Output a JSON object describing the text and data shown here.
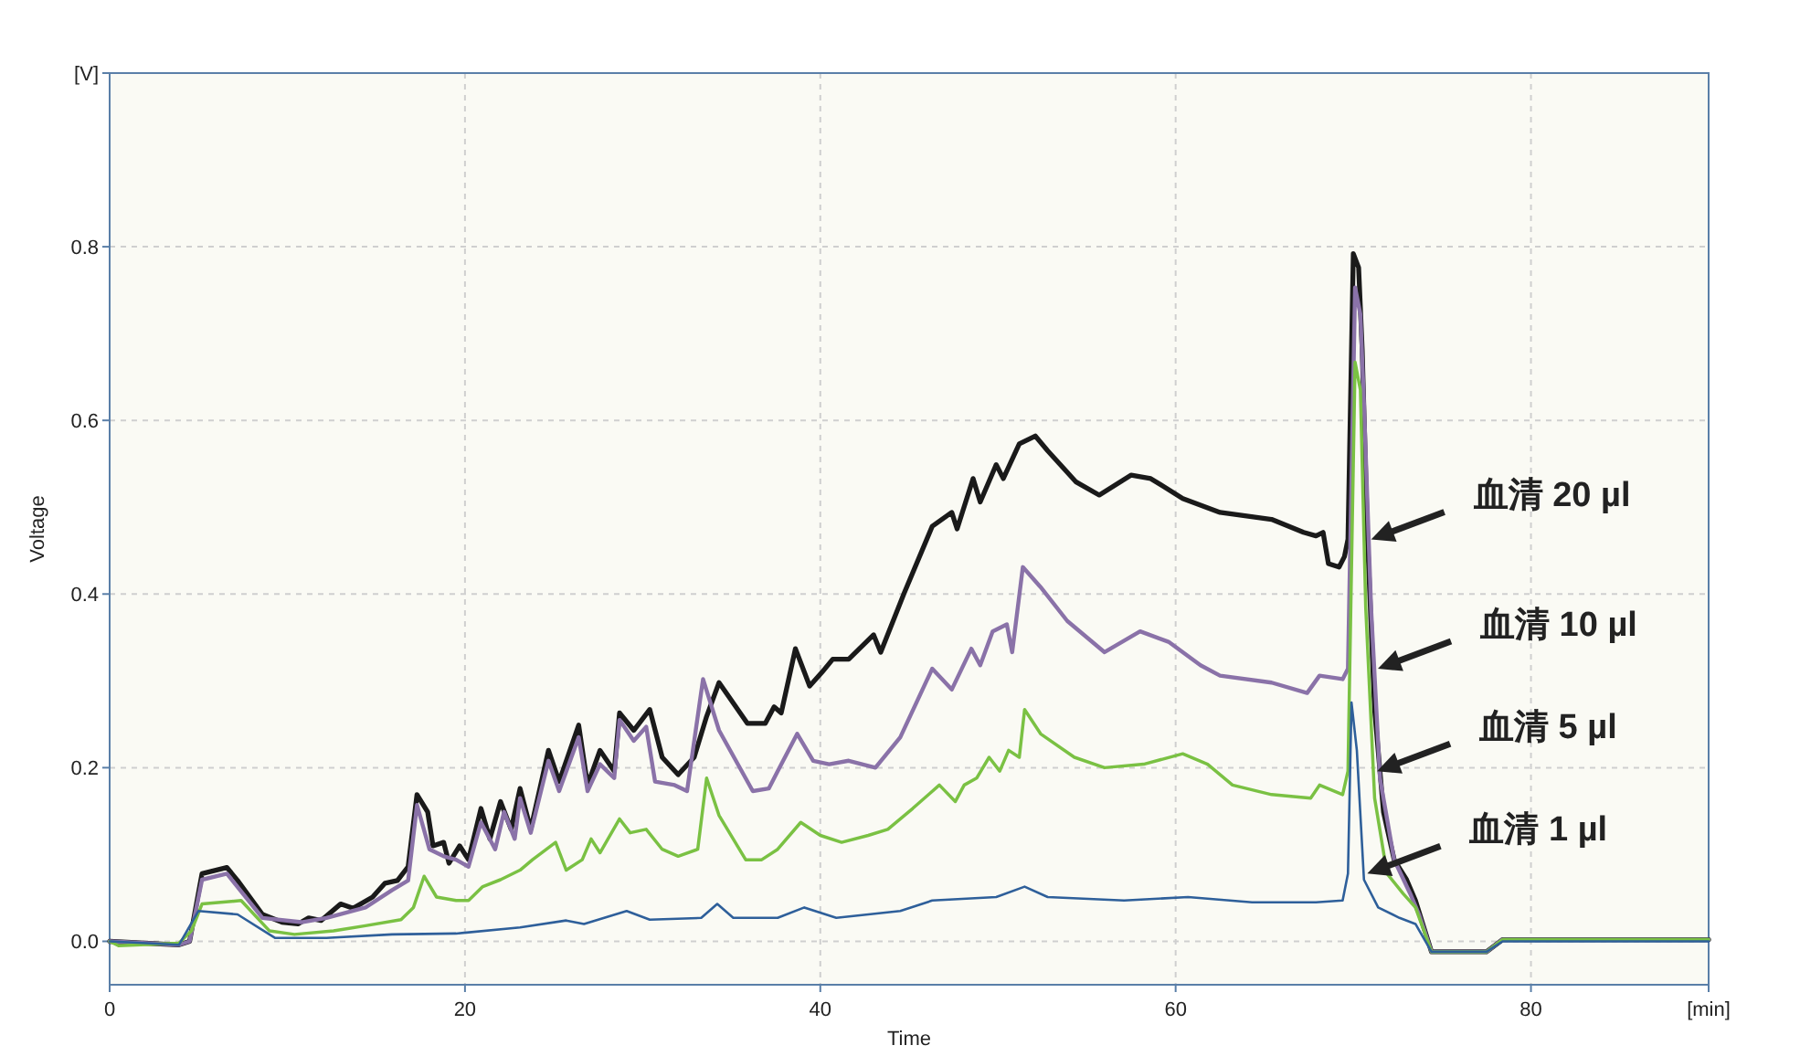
{
  "chart_data": {
    "type": "line",
    "xlabel": "Time",
    "ylabel": "Voltage",
    "xlim": [
      0,
      90
    ],
    "ylim": [
      -0.05,
      1.0
    ],
    "xticks": [
      0,
      20,
      40,
      60,
      80,
      {
        "value": 90,
        "label": "[min]"
      }
    ],
    "yticks": [
      {
        "value": 0,
        "label": "0.0"
      },
      0.2,
      0.4,
      0.6,
      0.8,
      {
        "value": 1.0,
        "label": "[V]"
      }
    ],
    "grid": true,
    "series": [
      {
        "color": "#1a1a1a",
        "x": [
          0,
          3.9,
          4.5,
          5.2,
          6.6,
          7.2,
          8.6,
          9.7,
          10.6,
          11.2,
          11.9,
          13.0,
          13.7,
          14.8,
          15.5,
          16.2,
          16.8,
          17.3,
          17.9,
          18.2,
          18.8,
          19.1,
          19.7,
          20.2,
          20.9,
          21.4,
          22.0,
          22.6,
          23.1,
          23.7,
          24.7,
          25.3,
          26.4,
          26.9,
          27.6,
          28.4,
          28.7,
          29.5,
          30.4,
          31.1,
          32.0,
          32.9,
          33.6,
          34.3,
          35.9,
          36.9,
          37.4,
          37.8,
          38.6,
          39.4,
          40.1,
          40.7,
          41.6,
          43.0,
          43.4,
          44.7,
          46.3,
          47.4,
          47.7,
          48.6,
          49.0,
          49.9,
          50.3,
          51.2,
          52.1,
          52.8,
          54.4,
          55.7,
          57.5,
          58.6,
          60.4,
          62.5,
          65.4,
          67.2,
          67.9,
          68.3,
          68.6,
          69.2,
          69.5,
          69.7,
          70.0,
          70.3,
          70.5,
          70.8,
          71.2,
          71.7,
          72.3,
          73.0,
          73.5,
          74.4,
          77.5,
          78.4,
          90
        ],
        "values": [
          0,
          -0.004,
          0,
          0.078,
          0.085,
          0.07,
          0.031,
          0.022,
          0.02,
          0.027,
          0.024,
          0.043,
          0.038,
          0.051,
          0.067,
          0.07,
          0.086,
          0.169,
          0.149,
          0.11,
          0.114,
          0.09,
          0.11,
          0.094,
          0.153,
          0.118,
          0.161,
          0.129,
          0.176,
          0.129,
          0.22,
          0.184,
          0.249,
          0.18,
          0.22,
          0.196,
          0.263,
          0.243,
          0.267,
          0.212,
          0.192,
          0.212,
          0.259,
          0.298,
          0.251,
          0.251,
          0.27,
          0.263,
          0.337,
          0.294,
          0.31,
          0.325,
          0.325,
          0.353,
          0.333,
          0.4,
          0.478,
          0.494,
          0.475,
          0.533,
          0.506,
          0.549,
          0.533,
          0.573,
          0.582,
          0.565,
          0.529,
          0.514,
          0.537,
          0.533,
          0.51,
          0.494,
          0.486,
          0.471,
          0.467,
          0.471,
          0.435,
          0.431,
          0.443,
          0.463,
          0.792,
          0.776,
          0.682,
          0.463,
          0.267,
          0.149,
          0.094,
          0.071,
          0.047,
          -0.012,
          -0.012,
          0.002,
          0.002
        ]
      },
      {
        "color": "#8a72a8",
        "x": [
          0,
          3.9,
          4.5,
          5.2,
          6.6,
          8.6,
          10.8,
          12.2,
          14.4,
          15.9,
          16.8,
          17.3,
          18.0,
          18.8,
          19.5,
          20.2,
          20.9,
          21.7,
          22.2,
          22.8,
          23.1,
          23.7,
          24.7,
          25.3,
          26.4,
          26.9,
          27.6,
          28.4,
          28.7,
          29.5,
          30.2,
          30.7,
          31.8,
          32.5,
          33.4,
          34.3,
          36.2,
          37.1,
          37.6,
          38.7,
          39.6,
          40.5,
          41.6,
          43.1,
          44.5,
          46.3,
          47.4,
          48.5,
          49.0,
          49.7,
          50.5,
          50.8,
          51.4,
          52.4,
          53.9,
          56.0,
          58.0,
          59.6,
          61.4,
          62.5,
          65.4,
          67.4,
          68.1,
          69.4,
          69.7,
          70.1,
          70.4,
          70.6,
          71.0,
          71.5,
          72.3,
          73.2,
          73.7,
          74.4,
          77.5,
          78.4,
          90
        ],
        "values": [
          0,
          -0.004,
          0,
          0.071,
          0.078,
          0.027,
          0.022,
          0.027,
          0.039,
          0.059,
          0.07,
          0.157,
          0.106,
          0.098,
          0.094,
          0.086,
          0.137,
          0.106,
          0.149,
          0.118,
          0.165,
          0.125,
          0.208,
          0.173,
          0.235,
          0.173,
          0.204,
          0.188,
          0.255,
          0.231,
          0.247,
          0.184,
          0.18,
          0.173,
          0.302,
          0.243,
          0.173,
          0.176,
          0.196,
          0.239,
          0.208,
          0.204,
          0.208,
          0.2,
          0.235,
          0.314,
          0.29,
          0.337,
          0.318,
          0.357,
          0.365,
          0.333,
          0.431,
          0.408,
          0.369,
          0.333,
          0.357,
          0.345,
          0.318,
          0.306,
          0.298,
          0.286,
          0.306,
          0.302,
          0.314,
          0.753,
          0.722,
          0.62,
          0.384,
          0.188,
          0.094,
          0.055,
          0.031,
          -0.012,
          -0.012,
          0.002,
          0.002
        ]
      },
      {
        "color": "#7ac143",
        "x": [
          0,
          0.5,
          3.9,
          4.6,
          5.2,
          7.4,
          9.0,
          10.4,
          12.6,
          14.4,
          16.4,
          17.1,
          17.7,
          18.4,
          19.5,
          20.2,
          21.0,
          22.0,
          23.1,
          23.8,
          25.1,
          25.7,
          26.6,
          27.1,
          27.6,
          28.7,
          29.3,
          30.2,
          31.1,
          32.0,
          33.1,
          33.6,
          34.3,
          35.8,
          36.7,
          37.6,
          38.9,
          40.0,
          41.2,
          42.7,
          43.8,
          45.2,
          46.7,
          47.6,
          48.1,
          48.8,
          49.5,
          50.1,
          50.6,
          51.2,
          51.5,
          52.4,
          54.3,
          56.0,
          58.2,
          60.4,
          61.8,
          63.2,
          65.4,
          67.6,
          68.1,
          69.4,
          69.7,
          70.1,
          70.4,
          70.7,
          71.2,
          71.9,
          72.8,
          73.5,
          74.4,
          77.5,
          78.4,
          90
        ],
        "values": [
          0,
          -0.005,
          -0.002,
          0.012,
          0.043,
          0.047,
          0.012,
          0.008,
          0.012,
          0.018,
          0.025,
          0.039,
          0.075,
          0.051,
          0.047,
          0.047,
          0.063,
          0.071,
          0.082,
          0.094,
          0.114,
          0.082,
          0.094,
          0.118,
          0.102,
          0.141,
          0.125,
          0.129,
          0.106,
          0.098,
          0.106,
          0.188,
          0.145,
          0.094,
          0.094,
          0.106,
          0.137,
          0.122,
          0.114,
          0.122,
          0.129,
          0.153,
          0.18,
          0.161,
          0.18,
          0.188,
          0.212,
          0.196,
          0.22,
          0.212,
          0.267,
          0.239,
          0.212,
          0.2,
          0.204,
          0.216,
          0.204,
          0.18,
          0.169,
          0.165,
          0.18,
          0.169,
          0.196,
          0.667,
          0.635,
          0.384,
          0.165,
          0.078,
          0.055,
          0.039,
          -0.012,
          -0.012,
          0.002,
          0.002
        ]
      },
      {
        "color": "#2e5f9a",
        "x": [
          0,
          3.9,
          5.0,
          7.2,
          9.3,
          12.2,
          15.9,
          19.5,
          23.1,
          25.7,
          26.7,
          29.1,
          30.4,
          33.3,
          34.2,
          35.1,
          37.6,
          39.1,
          40.9,
          44.5,
          46.3,
          49.9,
          51.5,
          52.8,
          57.1,
          60.7,
          64.3,
          67.9,
          69.4,
          69.7,
          69.9,
          70.2,
          70.6,
          71.4,
          72.6,
          73.5,
          74.4,
          77.5,
          78.4,
          90
        ],
        "values": [
          0,
          -0.004,
          0.035,
          0.031,
          0.004,
          0.004,
          0.008,
          0.009,
          0.016,
          0.024,
          0.02,
          0.035,
          0.025,
          0.027,
          0.043,
          0.027,
          0.027,
          0.039,
          0.027,
          0.035,
          0.047,
          0.051,
          0.063,
          0.051,
          0.047,
          0.051,
          0.045,
          0.045,
          0.047,
          0.078,
          0.275,
          0.22,
          0.071,
          0.039,
          0.027,
          0.02,
          -0.012,
          -0.012,
          0,
          0
        ]
      }
    ],
    "annotations": [
      "血清 20 µl",
      "血清 10 µl",
      "血清 5 µl",
      "血清 1 µl"
    ]
  }
}
